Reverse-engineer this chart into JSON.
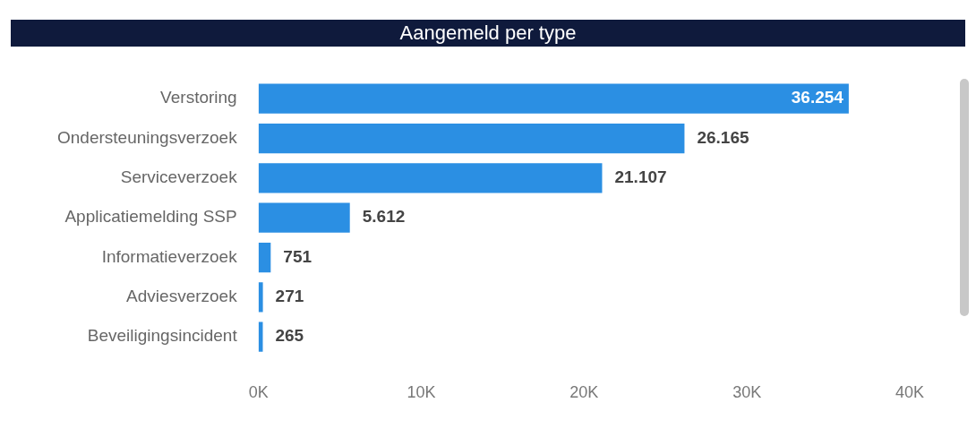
{
  "chart_data": {
    "type": "bar",
    "orientation": "horizontal",
    "title": "Aangemeld per type",
    "categories": [
      "Verstoring",
      "Ondersteuningsverzoek",
      "Serviceverzoek",
      "Applicatiemelding SSP",
      "Informatieverzoek",
      "Adviesverzoek",
      "Beveiligingsincident"
    ],
    "values": [
      36254,
      26165,
      21107,
      5612,
      751,
      271,
      265
    ],
    "value_labels": [
      "36.254",
      "26.165",
      "21.107",
      "5.612",
      "751",
      "271",
      "265"
    ],
    "color": "#2b8fe3",
    "xlim": [
      0,
      40000
    ],
    "xticks": [
      {
        "value": 0,
        "label": "0K"
      },
      {
        "value": 10000,
        "label": "10K"
      },
      {
        "value": 20000,
        "label": "20K"
      },
      {
        "value": 30000,
        "label": "30K"
      },
      {
        "value": 40000,
        "label": "40K"
      }
    ],
    "legend": false
  }
}
